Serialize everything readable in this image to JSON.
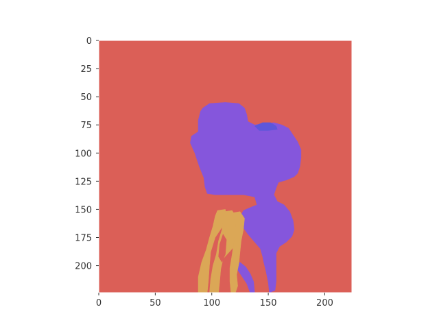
{
  "chart_data": {
    "type": "heatmap",
    "title": "",
    "xlabel": "",
    "ylabel": "",
    "xlim": [
      0,
      224
    ],
    "ylim": [
      224,
      0
    ],
    "x_ticks": [
      "0",
      "50",
      "100",
      "150",
      "200"
    ],
    "y_ticks": [
      "0",
      "25",
      "50",
      "75",
      "100",
      "125",
      "150",
      "175",
      "200"
    ],
    "grid": false,
    "legend": "none",
    "description_of_values": "segmentation label map",
    "colors": {
      "background": "#db5f57",
      "purple": "#8556dc",
      "orange": "#dba756",
      "blue": "#5c57db"
    },
    "regions": [
      {
        "label": "background",
        "color": "#db5f57",
        "polygon": [
          [
            0,
            0
          ],
          [
            224,
            0
          ],
          [
            224,
            224
          ],
          [
            0,
            224
          ]
        ]
      },
      {
        "label": "purple-body",
        "color": "#8556dc",
        "polygon": [
          [
            92,
            60
          ],
          [
            98,
            56
          ],
          [
            112,
            55
          ],
          [
            124,
            56
          ],
          [
            129,
            60
          ],
          [
            131,
            66
          ],
          [
            132,
            72
          ],
          [
            138,
            75
          ],
          [
            145,
            74
          ],
          [
            155,
            73
          ],
          [
            162,
            75
          ],
          [
            168,
            78
          ],
          [
            172,
            84
          ],
          [
            176,
            90
          ],
          [
            179,
            97
          ],
          [
            179,
            104
          ],
          [
            178,
            112
          ],
          [
            176,
            118
          ],
          [
            173,
            121
          ],
          [
            166,
            124
          ],
          [
            159,
            126
          ],
          [
            157,
            131
          ],
          [
            155,
            137
          ],
          [
            158,
            143
          ],
          [
            164,
            146
          ],
          [
            169,
            152
          ],
          [
            172,
            160
          ],
          [
            173,
            168
          ],
          [
            171,
            174
          ],
          [
            166,
            179
          ],
          [
            160,
            183
          ],
          [
            157,
            189
          ],
          [
            157,
            196
          ],
          [
            157,
            205
          ],
          [
            157,
            214
          ],
          [
            156,
            222
          ],
          [
            151,
            224
          ],
          [
            150,
            215
          ],
          [
            148,
            205
          ],
          [
            146,
            197
          ],
          [
            145,
            192
          ],
          [
            143,
            185
          ],
          [
            137,
            178
          ],
          [
            132,
            172
          ],
          [
            127,
            165
          ],
          [
            125,
            157
          ],
          [
            128,
            151
          ],
          [
            135,
            148
          ],
          [
            140,
            146
          ],
          [
            138,
            139
          ],
          [
            128,
            137
          ],
          [
            115,
            137
          ],
          [
            103,
            137
          ],
          [
            96,
            136
          ],
          [
            94,
            130
          ],
          [
            93,
            122
          ],
          [
            89,
            112
          ],
          [
            85,
            100
          ],
          [
            81,
            91
          ],
          [
            82,
            85
          ],
          [
            88,
            81
          ],
          [
            88,
            71
          ],
          [
            90,
            63
          ]
        ]
      },
      {
        "label": "purple-leg",
        "color": "#8556dc",
        "polygon": [
          [
            125,
            197
          ],
          [
            130,
            201
          ],
          [
            134,
            207
          ],
          [
            137,
            214
          ],
          [
            138,
            224
          ],
          [
            134,
            224
          ],
          [
            131,
            216
          ],
          [
            127,
            210
          ],
          [
            123,
            204
          ],
          [
            122,
            199
          ]
        ]
      },
      {
        "label": "blue-patch",
        "color": "#5c57db",
        "polygon": [
          [
            138,
            76
          ],
          [
            145,
            73
          ],
          [
            152,
            73
          ],
          [
            157,
            76
          ],
          [
            158,
            79
          ],
          [
            150,
            80
          ],
          [
            142,
            80
          ]
        ]
      },
      {
        "label": "orange-left",
        "color": "#dba756",
        "polygon": [
          [
            105,
            151
          ],
          [
            112,
            150
          ],
          [
            113,
            158
          ],
          [
            109,
            166
          ],
          [
            103,
            175
          ],
          [
            99,
            188
          ],
          [
            98,
            200
          ],
          [
            97,
            214
          ],
          [
            96,
            224
          ],
          [
            88,
            224
          ],
          [
            88,
            210
          ],
          [
            91,
            197
          ],
          [
            95,
            186
          ],
          [
            98,
            175
          ],
          [
            101,
            165
          ],
          [
            103,
            156
          ]
        ]
      },
      {
        "label": "orange-mid",
        "color": "#dba756",
        "polygon": [
          [
            111,
            152
          ],
          [
            118,
            151
          ],
          [
            121,
            156
          ],
          [
            121,
            170
          ],
          [
            119,
            184
          ],
          [
            110,
            194
          ],
          [
            108,
            203
          ],
          [
            107,
            214
          ],
          [
            106,
            224
          ],
          [
            98,
            224
          ],
          [
            99,
            212
          ],
          [
            101,
            200
          ],
          [
            104,
            190
          ],
          [
            106,
            178
          ],
          [
            109,
            168
          ],
          [
            110,
            158
          ]
        ]
      },
      {
        "label": "orange-right",
        "color": "#dba756",
        "polygon": [
          [
            119,
            153
          ],
          [
            125,
            152
          ],
          [
            129,
            158
          ],
          [
            128,
            168
          ],
          [
            126,
            178
          ],
          [
            125,
            188
          ],
          [
            124,
            198
          ],
          [
            122,
            208
          ],
          [
            123,
            218
          ],
          [
            121,
            224
          ],
          [
            117,
            224
          ],
          [
            116,
            214
          ],
          [
            116,
            202
          ],
          [
            118,
            190
          ],
          [
            120,
            176
          ],
          [
            121,
            164
          ]
        ]
      },
      {
        "label": "background-gap",
        "color": "#db5f57",
        "polygon": [
          [
            110,
            172
          ],
          [
            113,
            177
          ],
          [
            112,
            190
          ],
          [
            109,
            197
          ],
          [
            106,
            192
          ],
          [
            107,
            181
          ]
        ]
      }
    ]
  }
}
